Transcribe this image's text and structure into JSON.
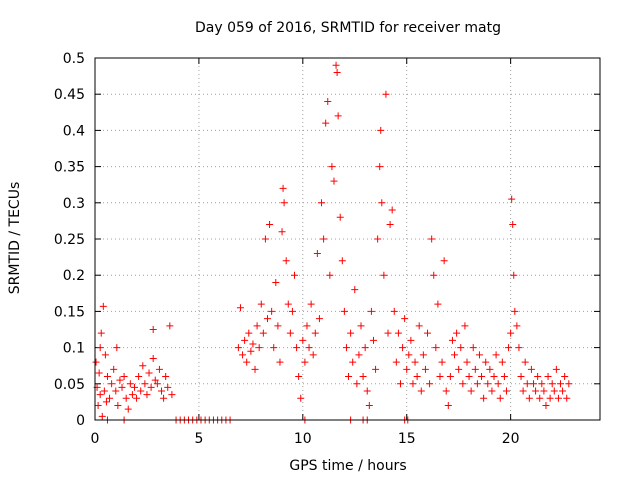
{
  "chart_data": {
    "type": "scatter",
    "title": "Day 059 of 2016, SRMTID for receiver matg",
    "xlabel": "GPS time / hours",
    "ylabel": "SRMTID / TECUs",
    "xlim": [
      0,
      24.3
    ],
    "ylim": [
      0,
      0.5
    ],
    "xticks": [
      0,
      5,
      10,
      15,
      20
    ],
    "yticks": [
      0,
      0.05,
      0.1,
      0.15,
      0.2,
      0.25,
      0.3,
      0.35,
      0.4,
      0.45,
      0.5
    ],
    "grid": true,
    "marker": "+",
    "color": "#ff0000",
    "series": [
      {
        "name": "matg",
        "points": [
          [
            0.05,
            0.08
          ],
          [
            0.1,
            0.045
          ],
          [
            0.15,
            0.02
          ],
          [
            0.2,
            0.065
          ],
          [
            0.25,
            0.035
          ],
          [
            0.3,
            0.12
          ],
          [
            0.35,
            0.005
          ],
          [
            0.4,
            0.157
          ],
          [
            0.45,
            0.04
          ],
          [
            0.5,
            0.09
          ],
          [
            0.55,
            0.025
          ],
          [
            0.6,
            0.06
          ],
          [
            0.7,
            0.03
          ],
          [
            0.8,
            0.05
          ],
          [
            0.9,
            0.07
          ],
          [
            1.0,
            0.04
          ],
          [
            1.1,
            0.02
          ],
          [
            1.2,
            0.055
          ],
          [
            1.3,
            0.045
          ],
          [
            1.4,
            0.06
          ],
          [
            1.5,
            0.03
          ],
          [
            1.6,
            0.015
          ],
          [
            1.7,
            0.05
          ],
          [
            1.8,
            0.035
          ],
          [
            1.9,
            0.045
          ],
          [
            2.0,
            0.03
          ],
          [
            2.1,
            0.06
          ],
          [
            2.2,
            0.04
          ],
          [
            2.3,
            0.075
          ],
          [
            2.4,
            0.05
          ],
          [
            2.5,
            0.035
          ],
          [
            2.6,
            0.065
          ],
          [
            2.7,
            0.045
          ],
          [
            2.8,
            0.085
          ],
          [
            2.9,
            0.055
          ],
          [
            3.0,
            0.05
          ],
          [
            3.1,
            0.07
          ],
          [
            3.2,
            0.04
          ],
          [
            3.3,
            0.03
          ],
          [
            3.4,
            0.06
          ],
          [
            3.5,
            0.045
          ],
          [
            3.6,
            0.13
          ],
          [
            3.7,
            0.035
          ],
          [
            2.8,
            0.125
          ],
          [
            0.25,
            0.1
          ],
          [
            1.05,
            0.1
          ],
          [
            6.9,
            0.1
          ],
          [
            7.0,
            0.155
          ],
          [
            7.1,
            0.09
          ],
          [
            7.2,
            0.11
          ],
          [
            7.3,
            0.08
          ],
          [
            7.4,
            0.12
          ],
          [
            7.5,
            0.095
          ],
          [
            7.6,
            0.105
          ],
          [
            7.7,
            0.07
          ],
          [
            7.8,
            0.13
          ],
          [
            7.9,
            0.1
          ],
          [
            8.0,
            0.16
          ],
          [
            8.1,
            0.12
          ],
          [
            8.2,
            0.25
          ],
          [
            8.3,
            0.14
          ],
          [
            8.4,
            0.27
          ],
          [
            8.5,
            0.15
          ],
          [
            8.6,
            0.1
          ],
          [
            8.7,
            0.19
          ],
          [
            8.8,
            0.13
          ],
          [
            8.9,
            0.08
          ],
          [
            9.0,
            0.26
          ],
          [
            9.05,
            0.32
          ],
          [
            9.1,
            0.3
          ],
          [
            9.2,
            0.22
          ],
          [
            9.3,
            0.16
          ],
          [
            9.4,
            0.12
          ],
          [
            9.5,
            0.15
          ],
          [
            9.6,
            0.2
          ],
          [
            9.7,
            0.1
          ],
          [
            9.8,
            0.06
          ],
          [
            9.9,
            0.03
          ],
          [
            10.0,
            0.11
          ],
          [
            10.1,
            0.08
          ],
          [
            10.2,
            0.13
          ],
          [
            10.3,
            0.1
          ],
          [
            10.4,
            0.16
          ],
          [
            10.5,
            0.09
          ],
          [
            10.6,
            0.12
          ],
          [
            10.7,
            0.23
          ],
          [
            10.8,
            0.14
          ],
          [
            10.9,
            0.3
          ],
          [
            11.0,
            0.25
          ],
          [
            11.1,
            0.41
          ],
          [
            11.2,
            0.44
          ],
          [
            11.3,
            0.2
          ],
          [
            11.4,
            0.35
          ],
          [
            11.5,
            0.33
          ],
          [
            11.6,
            0.49
          ],
          [
            11.65,
            0.48
          ],
          [
            11.7,
            0.42
          ],
          [
            11.8,
            0.28
          ],
          [
            11.9,
            0.22
          ],
          [
            12.0,
            0.15
          ],
          [
            12.1,
            0.1
          ],
          [
            12.2,
            0.06
          ],
          [
            12.3,
            0.12
          ],
          [
            12.4,
            0.08
          ],
          [
            12.5,
            0.18
          ],
          [
            12.6,
            0.05
          ],
          [
            12.7,
            0.09
          ],
          [
            12.8,
            0.13
          ],
          [
            12.9,
            0.06
          ],
          [
            13.0,
            0.1
          ],
          [
            13.1,
            0.04
          ],
          [
            13.2,
            0.02
          ],
          [
            13.3,
            0.15
          ],
          [
            13.4,
            0.11
          ],
          [
            13.5,
            0.07
          ],
          [
            13.6,
            0.25
          ],
          [
            13.7,
            0.35
          ],
          [
            13.75,
            0.4
          ],
          [
            13.8,
            0.3
          ],
          [
            13.9,
            0.2
          ],
          [
            14.0,
            0.45
          ],
          [
            14.1,
            0.12
          ],
          [
            14.2,
            0.27
          ],
          [
            14.3,
            0.29
          ],
          [
            14.4,
            0.15
          ],
          [
            14.5,
            0.08
          ],
          [
            14.6,
            0.12
          ],
          [
            14.7,
            0.05
          ],
          [
            14.8,
            0.1
          ],
          [
            14.9,
            0.14
          ],
          [
            15.0,
            0.07
          ],
          [
            15.1,
            0.09
          ],
          [
            15.2,
            0.11
          ],
          [
            15.3,
            0.05
          ],
          [
            15.4,
            0.08
          ],
          [
            15.5,
            0.06
          ],
          [
            15.6,
            0.13
          ],
          [
            15.7,
            0.04
          ],
          [
            15.8,
            0.09
          ],
          [
            15.9,
            0.07
          ],
          [
            16.0,
            0.12
          ],
          [
            16.1,
            0.05
          ],
          [
            16.2,
            0.25
          ],
          [
            16.3,
            0.2
          ],
          [
            16.4,
            0.1
          ],
          [
            16.5,
            0.16
          ],
          [
            16.6,
            0.06
          ],
          [
            16.7,
            0.08
          ],
          [
            16.8,
            0.22
          ],
          [
            16.9,
            0.04
          ],
          [
            17.0,
            0.02
          ],
          [
            17.1,
            0.06
          ],
          [
            17.2,
            0.11
          ],
          [
            17.3,
            0.09
          ],
          [
            17.4,
            0.12
          ],
          [
            17.5,
            0.07
          ],
          [
            17.6,
            0.1
          ],
          [
            17.7,
            0.05
          ],
          [
            17.8,
            0.13
          ],
          [
            17.9,
            0.08
          ],
          [
            18.0,
            0.06
          ],
          [
            18.1,
            0.04
          ],
          [
            18.2,
            0.1
          ],
          [
            18.3,
            0.07
          ],
          [
            18.4,
            0.05
          ],
          [
            18.5,
            0.09
          ],
          [
            18.6,
            0.06
          ],
          [
            18.7,
            0.03
          ],
          [
            18.8,
            0.08
          ],
          [
            18.9,
            0.05
          ],
          [
            19.0,
            0.07
          ],
          [
            19.1,
            0.04
          ],
          [
            19.2,
            0.06
          ],
          [
            19.3,
            0.09
          ],
          [
            19.4,
            0.05
          ],
          [
            19.5,
            0.03
          ],
          [
            19.6,
            0.08
          ],
          [
            19.7,
            0.06
          ],
          [
            19.8,
            0.04
          ],
          [
            19.9,
            0.1
          ],
          [
            20.0,
            0.12
          ],
          [
            20.05,
            0.305
          ],
          [
            20.1,
            0.27
          ],
          [
            20.15,
            0.2
          ],
          [
            20.2,
            0.15
          ],
          [
            20.3,
            0.13
          ],
          [
            20.4,
            0.1
          ],
          [
            20.5,
            0.06
          ],
          [
            20.6,
            0.04
          ],
          [
            20.7,
            0.08
          ],
          [
            20.8,
            0.05
          ],
          [
            20.9,
            0.03
          ],
          [
            21.0,
            0.07
          ],
          [
            21.1,
            0.05
          ],
          [
            21.2,
            0.04
          ],
          [
            21.3,
            0.06
          ],
          [
            21.4,
            0.03
          ],
          [
            21.5,
            0.05
          ],
          [
            21.6,
            0.04
          ],
          [
            21.7,
            0.02
          ],
          [
            21.8,
            0.06
          ],
          [
            21.9,
            0.03
          ],
          [
            22.0,
            0.05
          ],
          [
            22.1,
            0.04
          ],
          [
            22.2,
            0.07
          ],
          [
            22.3,
            0.03
          ],
          [
            22.4,
            0.05
          ],
          [
            22.5,
            0.04
          ],
          [
            22.6,
            0.06
          ],
          [
            22.7,
            0.03
          ],
          [
            22.8,
            0.05
          ],
          [
            3.9,
            0.0
          ],
          [
            4.1,
            0.0
          ],
          [
            4.3,
            0.0
          ],
          [
            4.5,
            0.0
          ],
          [
            4.7,
            0.0
          ],
          [
            4.9,
            0.0
          ],
          [
            5.1,
            0.0
          ],
          [
            5.3,
            0.0
          ],
          [
            5.5,
            0.0
          ],
          [
            5.7,
            0.0
          ],
          [
            5.9,
            0.0
          ],
          [
            6.1,
            0.0
          ],
          [
            6.3,
            0.0
          ],
          [
            6.5,
            0.0
          ],
          [
            0.6,
            0.0
          ],
          [
            1.4,
            0.0
          ],
          [
            10.1,
            0.0
          ],
          [
            12.3,
            0.0
          ],
          [
            12.9,
            0.0
          ],
          [
            13.1,
            0.0
          ],
          [
            14.9,
            0.0
          ],
          [
            15.05,
            0.0
          ]
        ]
      }
    ]
  }
}
